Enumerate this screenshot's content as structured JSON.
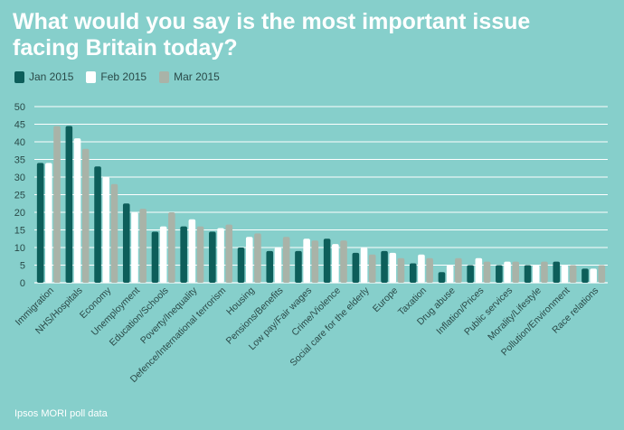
{
  "chart_data": {
    "type": "bar",
    "title": "What would you say is the most important issue facing Britain today?",
    "source": "Ipsos MORI poll data",
    "ylim": [
      0,
      50
    ],
    "yticks": [
      0,
      5,
      10,
      15,
      20,
      25,
      30,
      35,
      40,
      45,
      50
    ],
    "grid": true,
    "legend_position": "top-left",
    "categories": [
      "Immigration",
      "NHS/Hospitals",
      "Economy",
      "Unemployment",
      "Education/Schools",
      "Poverty/Inequality",
      "Defence/International terrorism",
      "Housing",
      "Pensions/Benefits",
      "Low pay/Fair wages",
      "Crime/Violence",
      "Social care for the elderly",
      "Europe",
      "Taxation",
      "Drug abuse",
      "Inflation/Prices",
      "Public services",
      "Morality/Lifestyle",
      "Pollution/Environment",
      "Race relations"
    ],
    "series": [
      {
        "name": "Jan 2015",
        "color": "#0d5e5a",
        "values": [
          34,
          44.5,
          33,
          22.5,
          14.5,
          16,
          14.5,
          10,
          9,
          9,
          12.5,
          8.5,
          9,
          5.5,
          3,
          5,
          5,
          5,
          6,
          4
        ]
      },
      {
        "name": "Feb 2015",
        "color": "#ffffff",
        "values": [
          34,
          41,
          30,
          20,
          16,
          18,
          15.5,
          13,
          10,
          12.5,
          11,
          10,
          8.5,
          8,
          5,
          7,
          6,
          5,
          5,
          4
        ]
      },
      {
        "name": "Mar 2015",
        "color": "#a9b3a8",
        "values": [
          44.5,
          38,
          28,
          21,
          20,
          16,
          16.5,
          14,
          13,
          12,
          12,
          8,
          7,
          7,
          7,
          6,
          6,
          6,
          5,
          5
        ]
      }
    ]
  }
}
